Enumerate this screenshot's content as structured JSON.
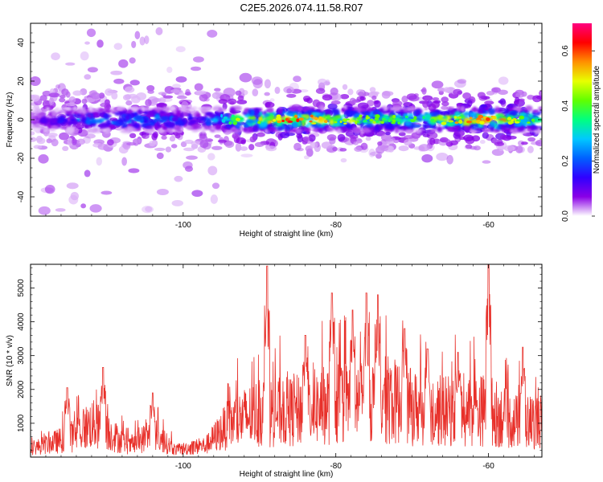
{
  "title": "C2E5.2026.074.11.58.R07",
  "chart_data": [
    {
      "type": "heatmap",
      "xlabel": "Height of straight line (km)",
      "ylabel": "Frequency (Hz)",
      "xlim": [
        -120,
        -53
      ],
      "ylim": [
        -50,
        50
      ],
      "x_ticks": [
        -100,
        -80,
        -60
      ],
      "y_ticks": [
        -40,
        -20,
        0,
        20,
        40
      ],
      "colorbar": {
        "label": "Normalized spectral amplitude",
        "range": [
          0.0,
          0.7
        ],
        "ticks": [
          0.0,
          0.2,
          0.4,
          0.6
        ],
        "colormap": [
          "#ffffff",
          "#8a00e6",
          "#3000ff",
          "#0060ff",
          "#00c8ff",
          "#00ff80",
          "#60ff00",
          "#e8ff00",
          "#ff9000",
          "#ff0000",
          "#ff0080"
        ]
      },
      "band": {
        "center_freq_hz": 0,
        "half_width_hz": 6,
        "profile": [
          {
            "x": -120,
            "peak_amplitude": 0.08
          },
          {
            "x": -112,
            "peak_amplitude": 0.25
          },
          {
            "x": -104,
            "peak_amplitude": 0.28
          },
          {
            "x": -98,
            "peak_amplitude": 0.15
          },
          {
            "x": -93,
            "peak_amplitude": 0.45
          },
          {
            "x": -86,
            "peak_amplitude": 0.62
          },
          {
            "x": -82,
            "peak_amplitude": 0.55
          },
          {
            "x": -76,
            "peak_amplitude": 0.45
          },
          {
            "x": -70,
            "peak_amplitude": 0.4
          },
          {
            "x": -64,
            "peak_amplitude": 0.55
          },
          {
            "x": -60,
            "peak_amplitude": 0.62
          },
          {
            "x": -55,
            "peak_amplitude": 0.45
          }
        ]
      }
    },
    {
      "type": "line",
      "xlabel": "Height of straight line (km)",
      "ylabel": "SNR (10 * v/v)",
      "xlim": [
        -120,
        -53
      ],
      "ylim": [
        0,
        5700
      ],
      "x_ticks": [
        -100,
        -80,
        -60
      ],
      "y_ticks": [
        1000,
        2000,
        3000,
        4000,
        5000
      ],
      "line_color": "#e8302a",
      "envelope": [
        {
          "x": -120,
          "y": 350
        },
        {
          "x": -115,
          "y": 800
        },
        {
          "x": -112,
          "y": 1400
        },
        {
          "x": -110,
          "y": 1100
        },
        {
          "x": -107,
          "y": 450
        },
        {
          "x": -104,
          "y": 1000
        },
        {
          "x": -101,
          "y": 300
        },
        {
          "x": -97,
          "y": 500
        },
        {
          "x": -94,
          "y": 1400
        },
        {
          "x": -90,
          "y": 1900
        },
        {
          "x": -86,
          "y": 1900
        },
        {
          "x": -81,
          "y": 2200
        },
        {
          "x": -77,
          "y": 2400
        },
        {
          "x": -73,
          "y": 2400
        },
        {
          "x": -69,
          "y": 2000
        },
        {
          "x": -64,
          "y": 1900
        },
        {
          "x": -60,
          "y": 2000
        },
        {
          "x": -57,
          "y": 1500
        },
        {
          "x": -53,
          "y": 1500
        }
      ],
      "peaks": [
        {
          "x": -115.2,
          "y": 2050
        },
        {
          "x": -110.5,
          "y": 2650
        },
        {
          "x": -104.0,
          "y": 1900
        },
        {
          "x": -89.0,
          "y": 5650
        },
        {
          "x": -84.0,
          "y": 3600
        },
        {
          "x": -80.5,
          "y": 4850
        },
        {
          "x": -77.8,
          "y": 4350
        },
        {
          "x": -76.0,
          "y": 4850
        },
        {
          "x": -74.5,
          "y": 4800
        },
        {
          "x": -71.0,
          "y": 3800
        },
        {
          "x": -68.0,
          "y": 3200
        },
        {
          "x": -64.0,
          "y": 3100
        },
        {
          "x": -60.0,
          "y": 5700
        },
        {
          "x": -55.5,
          "y": 3250
        }
      ]
    }
  ]
}
